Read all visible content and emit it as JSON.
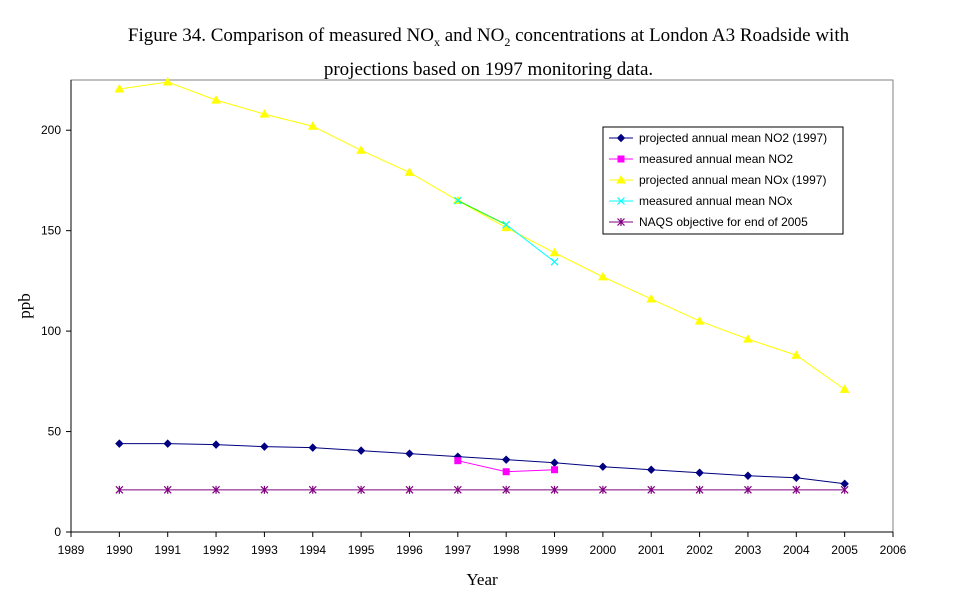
{
  "title": {
    "pre": "Figure 34. Comparison of measured NO",
    "sub1": "x",
    "mid": " and NO",
    "sub2": "2",
    "post": " concentrations at London A3 Roadside with",
    "line2": "projections based on 1997 monitoring data."
  },
  "chart_data": {
    "type": "line",
    "xlabel": "Year",
    "ylabel": "ppb",
    "xlim": [
      1989,
      2006
    ],
    "ylim": [
      0,
      225
    ],
    "x_ticks": [
      1989,
      1990,
      1991,
      1992,
      1993,
      1994,
      1995,
      1996,
      1997,
      1998,
      1999,
      2000,
      2001,
      2002,
      2003,
      2004,
      2005,
      2006
    ],
    "y_ticks": [
      0,
      50,
      100,
      150,
      200
    ],
    "grid": false,
    "legend_position": "top-right",
    "series": [
      {
        "name": "projected annual mean NO2 (1997)",
        "color": "#000080",
        "marker": "diamond",
        "x": [
          1990,
          1991,
          1992,
          1993,
          1994,
          1995,
          1996,
          1997,
          1998,
          1999,
          2000,
          2001,
          2002,
          2003,
          2004,
          2005
        ],
        "values": [
          44,
          44,
          43.5,
          42.5,
          42,
          40.5,
          39,
          37.5,
          36,
          34.5,
          32.5,
          31,
          29.5,
          28,
          27,
          24
        ]
      },
      {
        "name": "measured annual mean NO2",
        "color": "#ff00ff",
        "marker": "square",
        "x": [
          1997,
          1998,
          1999
        ],
        "values": [
          35.5,
          30,
          31
        ]
      },
      {
        "name": "projected annual mean NOx (1997)",
        "color": "#ffff00",
        "marker": "triangle",
        "x": [
          1990,
          1991,
          1992,
          1993,
          1994,
          1995,
          1996,
          1997,
          1998,
          1999,
          2000,
          2001,
          2002,
          2003,
          2004,
          2005
        ],
        "values": [
          220.5,
          224,
          215,
          208,
          202,
          190,
          179,
          165,
          151.5,
          139,
          127,
          116,
          105,
          96,
          88,
          71
        ]
      },
      {
        "name": "measured annual mean NOx",
        "color": "#00ffff",
        "marker": "x",
        "x": [
          1997,
          1998,
          1999
        ],
        "values": [
          165,
          153,
          134.5
        ]
      },
      {
        "name": "NAQS objective for end of 2005",
        "color": "#800080",
        "marker": "star",
        "x": [
          1990,
          1991,
          1992,
          1993,
          1994,
          1995,
          1996,
          1997,
          1998,
          1999,
          2000,
          2001,
          2002,
          2003,
          2004,
          2005
        ],
        "values": [
          21,
          21,
          21,
          21,
          21,
          21,
          21,
          21,
          21,
          21,
          21,
          21,
          21,
          21,
          21,
          21
        ]
      }
    ]
  }
}
